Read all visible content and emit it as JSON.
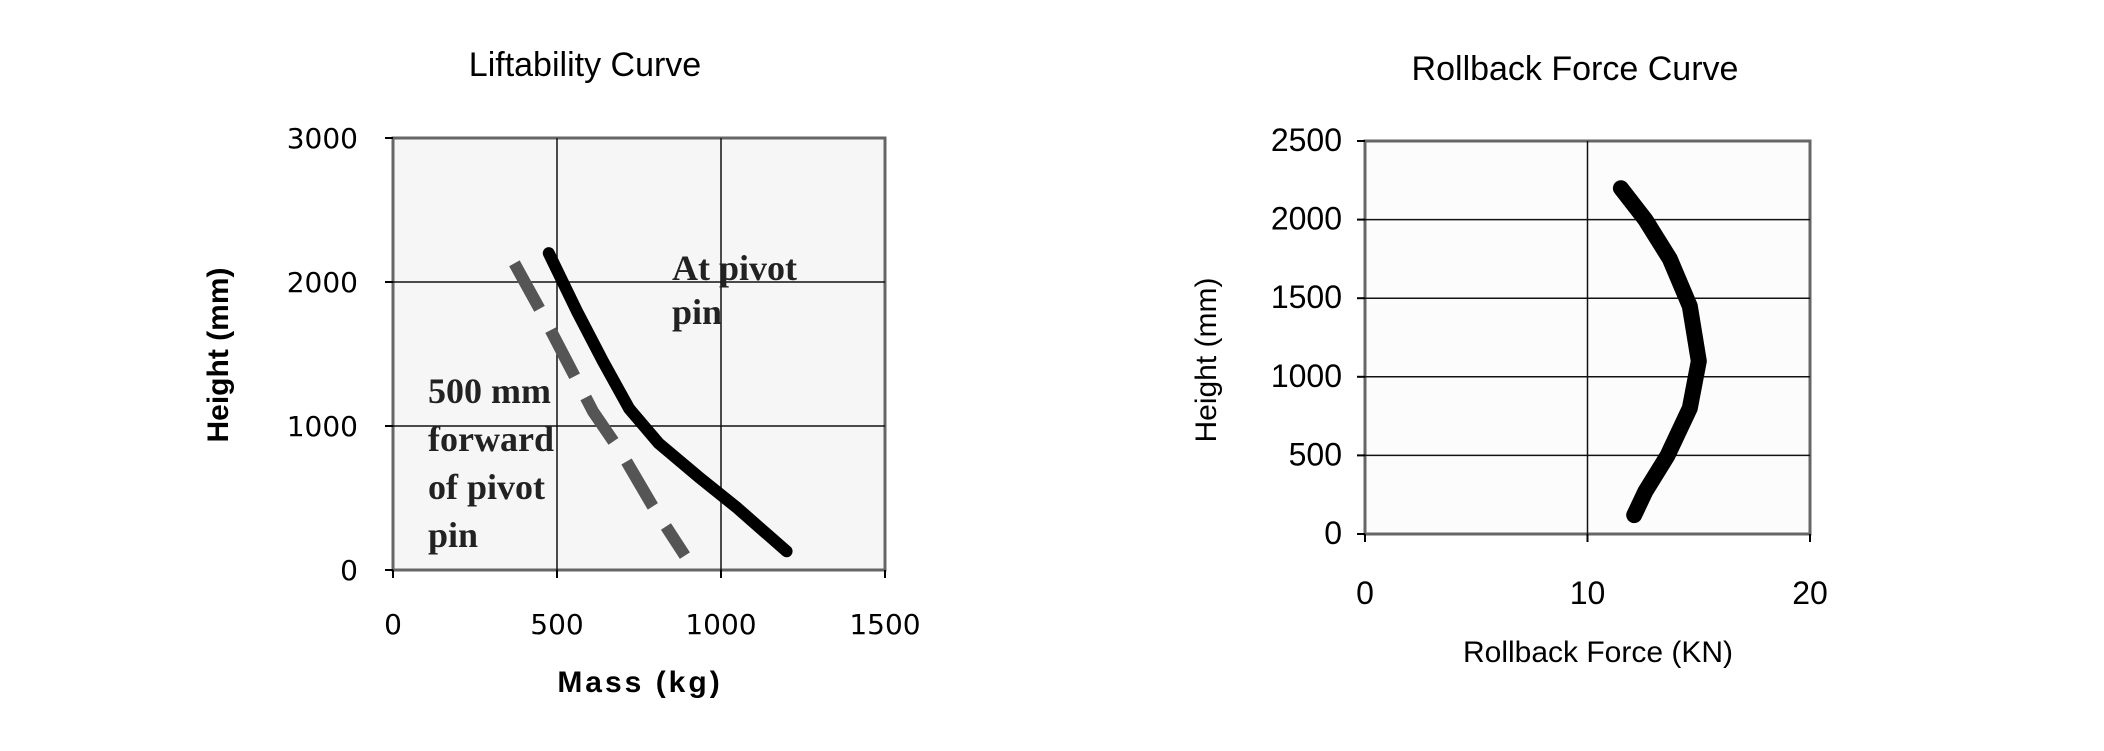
{
  "chart_data": [
    {
      "type": "line",
      "title": "Liftability Curve",
      "xlabel": "Mass (kg)",
      "ylabel": "Height (mm)",
      "xlim": [
        0,
        1500
      ],
      "ylim": [
        0,
        3000
      ],
      "xticks": [
        "0",
        "500",
        "1000",
        "1500"
      ],
      "yticks": [
        "0",
        "1000",
        "2000",
        "3000"
      ],
      "grid": true,
      "series": [
        {
          "style": "solid",
          "color": "#000000",
          "points": [
            [
              475,
              2200
            ],
            [
              560,
              1800
            ],
            [
              640,
              1450
            ],
            [
              720,
              1120
            ],
            [
              810,
              880
            ],
            [
              930,
              650
            ],
            [
              1050,
              430
            ],
            [
              1200,
              130
            ]
          ]
        },
        {
          "style": "dashed",
          "color": "#555555",
          "points": [
            [
              370,
              2130
            ],
            [
              450,
              1800
            ],
            [
              530,
              1450
            ],
            [
              610,
              1100
            ],
            [
              700,
              800
            ],
            [
              790,
              450
            ],
            [
              890,
              100
            ]
          ]
        }
      ],
      "annotations": [
        {
          "lines": [
            "At pivot",
            "pin"
          ]
        },
        {
          "lines": [
            "500 mm",
            "forward",
            "of pivot",
            "pin"
          ]
        }
      ]
    },
    {
      "type": "line",
      "title": "Rollback Force Curve",
      "xlabel": "Rollback Force (KN)",
      "ylabel": "Height (mm)",
      "xlim": [
        0,
        20
      ],
      "ylim": [
        0,
        2500
      ],
      "xticks": [
        "0",
        "10",
        "20"
      ],
      "yticks": [
        "0",
        "500",
        "1000",
        "1500",
        "2000",
        "2500"
      ],
      "grid": true,
      "series": [
        {
          "style": "solid",
          "color": "#000000",
          "points": [
            [
              11.5,
              2200
            ],
            [
              12.6,
              2000
            ],
            [
              13.7,
              1750
            ],
            [
              14.6,
              1450
            ],
            [
              15.0,
              1100
            ],
            [
              14.6,
              800
            ],
            [
              13.6,
              500
            ],
            [
              12.6,
              270
            ],
            [
              12.1,
              120
            ]
          ]
        }
      ]
    }
  ]
}
